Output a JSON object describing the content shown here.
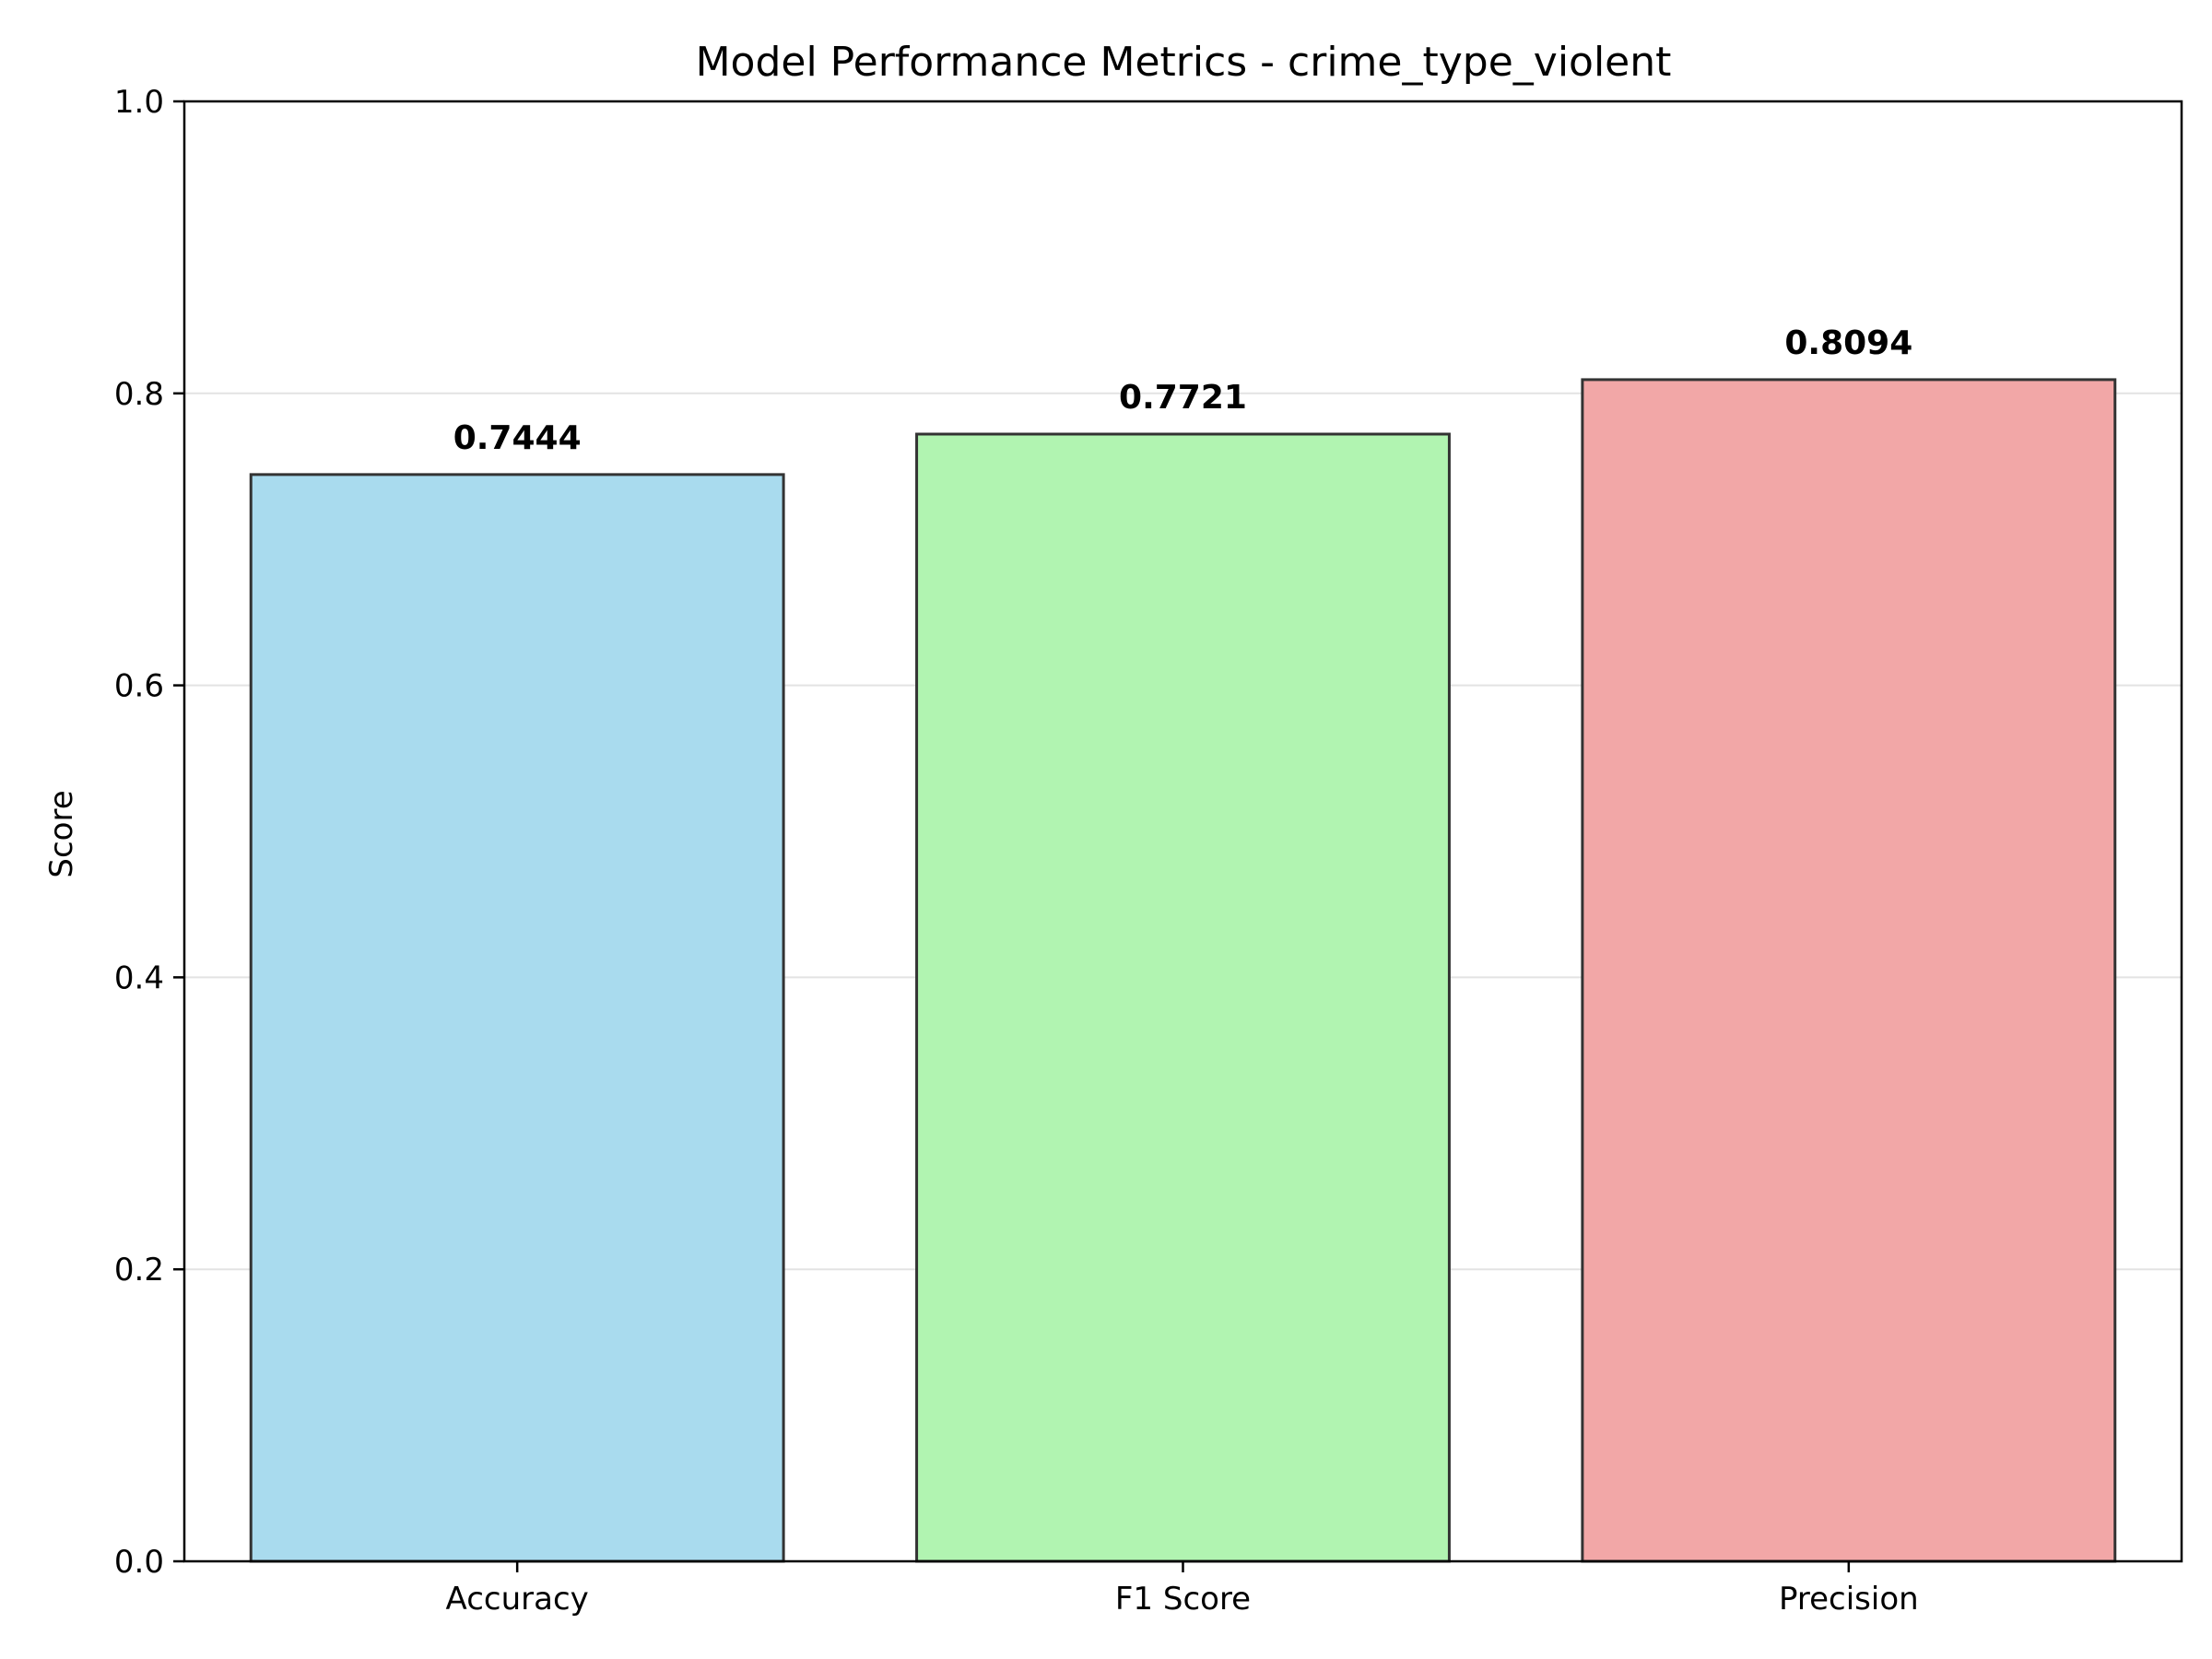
{
  "chart_data": {
    "type": "bar",
    "title": "Model Performance Metrics - crime_type_violent",
    "xlabel": "",
    "ylabel": "Score",
    "categories": [
      "Accuracy",
      "F1 Score",
      "Precision"
    ],
    "values": [
      0.7444,
      0.7721,
      0.8094
    ],
    "value_labels": [
      "0.7444",
      "0.7721",
      "0.8094"
    ],
    "bar_colors": [
      "#a9dbee",
      "#b1f4b1",
      "#f2a7a7"
    ],
    "bar_edge_color": "#333333",
    "ylim": [
      0,
      1.0
    ],
    "yticks": [
      0.0,
      0.2,
      0.4,
      0.6,
      0.8,
      1.0
    ],
    "ytick_labels": [
      "0.0",
      "0.2",
      "0.4",
      "0.6",
      "0.8",
      "1.0"
    ],
    "grid": "horizontal",
    "legend": "none"
  }
}
